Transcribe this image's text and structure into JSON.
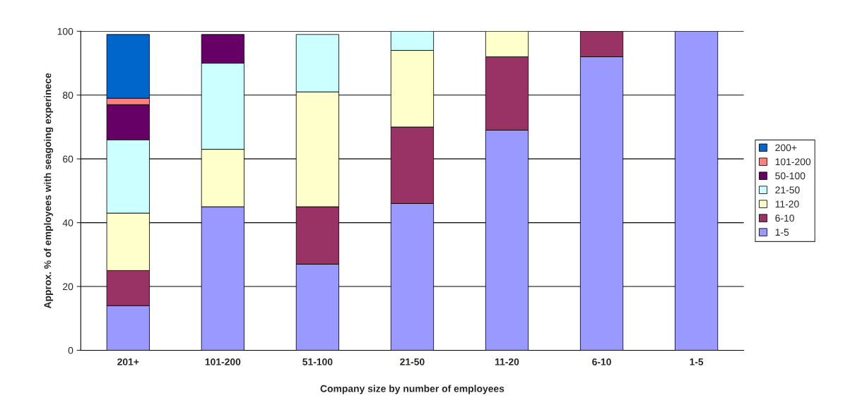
{
  "chart_data": {
    "type": "bar",
    "stacked": true,
    "xlabel": "Company size by number of employees",
    "ylabel": "Approx. % of employees with seagoing experinece",
    "categories": [
      "201+",
      "101-200",
      "51-100",
      "21-50",
      "11-20",
      "6-10",
      "1-5"
    ],
    "series": [
      {
        "name": "1-5",
        "color": "#9999ff",
        "values": [
          14,
          45,
          27,
          46,
          69,
          92,
          100
        ]
      },
      {
        "name": "6-10",
        "color": "#993366",
        "values": [
          11,
          null,
          18,
          24,
          23,
          8,
          null
        ]
      },
      {
        "name": "11-20",
        "color": "#ffffcc",
        "values": [
          18,
          18,
          36,
          24,
          8,
          null,
          null
        ]
      },
      {
        "name": "21-50",
        "color": "#ccffff",
        "values": [
          23,
          27,
          18,
          6,
          null,
          null,
          null
        ]
      },
      {
        "name": "50-100",
        "color": "#660066",
        "values": [
          11,
          9,
          null,
          null,
          null,
          null,
          null
        ]
      },
      {
        "name": "101-200",
        "color": "#ff8080",
        "values": [
          2,
          null,
          null,
          null,
          null,
          null,
          null
        ]
      },
      {
        "name": "200+",
        "color": "#0066cc",
        "values": [
          20,
          null,
          null,
          null,
          null,
          null,
          null
        ]
      }
    ],
    "ylim": [
      0,
      100
    ],
    "yticks": [
      0,
      20,
      40,
      60,
      80,
      100
    ],
    "grid": "y",
    "legend": "right"
  }
}
